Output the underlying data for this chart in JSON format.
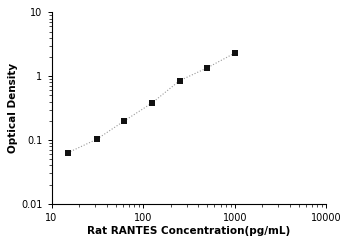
{
  "x": [
    15,
    31.25,
    62.5,
    125,
    250,
    500,
    1000
  ],
  "y": [
    0.063,
    0.103,
    0.2,
    0.38,
    0.85,
    1.35,
    2.3
  ],
  "xlim": [
    10,
    10000
  ],
  "ylim": [
    0.01,
    10
  ],
  "xlabel": "Rat RANTES Concentration(pg/mL)",
  "ylabel": "Optical Density",
  "line_color": "#999999",
  "marker_color": "#111111",
  "marker": "s",
  "marker_size": 4,
  "line_width": 0.8,
  "background_color": "#ffffff",
  "xticks": [
    10,
    100,
    1000,
    10000
  ],
  "yticks": [
    0.01,
    0.1,
    1,
    10
  ],
  "xlabel_fontsize": 7.5,
  "ylabel_fontsize": 7.5
}
